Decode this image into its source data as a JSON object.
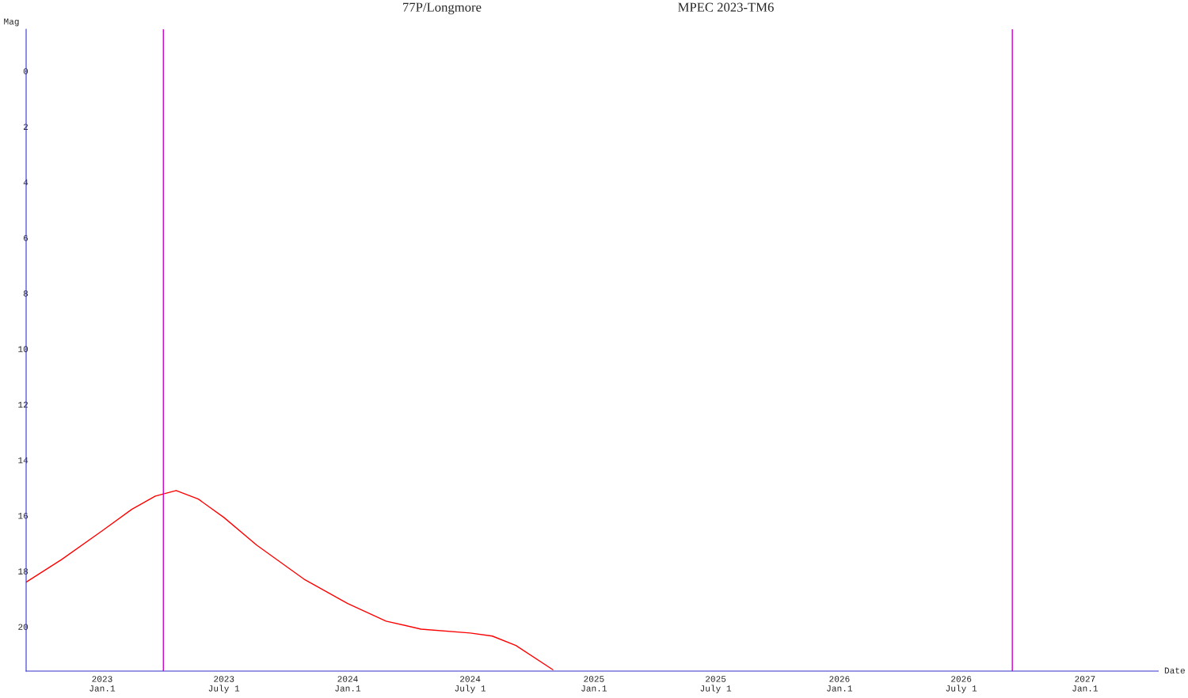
{
  "chart_data": {
    "type": "line",
    "title": "77P/Longmore",
    "subtitle": "MPEC 2023-TM6",
    "xlabel": "Date",
    "ylabel": "Mag",
    "x": [
      "2022-09-10",
      "2022-11-02",
      "2023-01-01",
      "2023-02-14",
      "2023-03-21",
      "2023-04-21",
      "2023-05-24",
      "2023-07-01",
      "2023-08-19",
      "2023-10-28",
      "2024-01-01",
      "2024-02-27",
      "2024-04-19",
      "2024-07-01",
      "2024-08-03",
      "2024-09-07",
      "2024-11-01"
    ],
    "series": [
      {
        "color": "#ff0000",
        "values": [
          18.4,
          17.58,
          16.55,
          15.78,
          15.3,
          15.1,
          15.41,
          16.07,
          17.07,
          18.29,
          19.17,
          19.8,
          20.09,
          20.23,
          20.34,
          20.68,
          21.55
        ]
      }
    ],
    "xlim": [
      "2022-09-10",
      "2027-04-20"
    ],
    "ylim": [
      21.6,
      -1.5
    ],
    "xticks": [
      {
        "value": "2023-01-01",
        "label": "2023\nJan.1"
      },
      {
        "value": "2023-07-01",
        "label": "2023\nJuly 1"
      },
      {
        "value": "2024-01-01",
        "label": "2024\nJan.1"
      },
      {
        "value": "2024-07-01",
        "label": "2024\nJuly 1"
      },
      {
        "value": "2025-01-01",
        "label": "2025\nJan.1"
      },
      {
        "value": "2025-07-01",
        "label": "2025\nJuly 1"
      },
      {
        "value": "2026-01-01",
        "label": "2026\nJan.1"
      },
      {
        "value": "2026-07-01",
        "label": "2026\nJuly 1"
      },
      {
        "value": "2027-01-01",
        "label": "2027\nJan.1"
      }
    ],
    "yticks": [
      0,
      2,
      4,
      6,
      8,
      10,
      12,
      14,
      16,
      18,
      20
    ],
    "ref_lines": [
      {
        "axis": "x",
        "value": "2023-04-02",
        "color": "#cc00cc"
      },
      {
        "axis": "x",
        "value": "2026-09-15",
        "color": "#cc00cc"
      }
    ],
    "grid": false,
    "legend": false,
    "marker": "none",
    "line_style": "solid"
  }
}
